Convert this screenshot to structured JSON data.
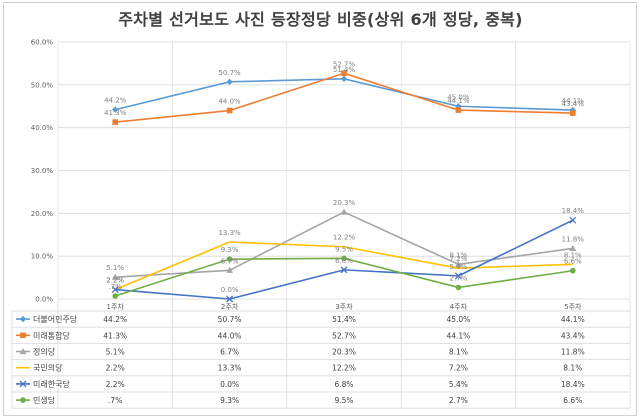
{
  "chart_data": {
    "type": "line",
    "title": "주차별 선거보도 사진 등장정당 비중(상위 6개 정당, 중복)",
    "categories": [
      "1주차",
      "2주차",
      "3주차",
      "4주차",
      "5주차"
    ],
    "ylim": [
      0,
      60
    ],
    "y_ticks": [
      "0.0%",
      "10.0%",
      "20.0%",
      "30.0%",
      "40.0%",
      "50.0%",
      "60.0%"
    ],
    "grid": true,
    "legend": "data-table-bottom",
    "series": [
      {
        "name": "더불어민주당",
        "color": "#5b9bd5",
        "marker": "diamond",
        "values": [
          44.2,
          50.7,
          51.4,
          45.0,
          44.1
        ],
        "labels": [
          "44.2%",
          "50.7%",
          "51.4%",
          "45.0%",
          "44.1%"
        ]
      },
      {
        "name": "미래통합당",
        "color": "#ed7d31",
        "marker": "square",
        "values": [
          41.3,
          44.0,
          52.7,
          44.1,
          43.4
        ],
        "labels": [
          "41.3%",
          "44.0%",
          "52.7%",
          "44.1%",
          "43.4%"
        ]
      },
      {
        "name": "정의당",
        "color": "#a5a5a5",
        "marker": "triangle",
        "values": [
          5.1,
          6.7,
          20.3,
          8.1,
          11.8
        ],
        "labels": [
          "5.1%",
          "6.7%",
          "20.3%",
          "8.1%",
          "11.8%"
        ]
      },
      {
        "name": "국민의당",
        "color": "#ffc000",
        "marker": "none",
        "values": [
          2.2,
          13.3,
          12.2,
          7.2,
          8.1
        ],
        "labels": [
          "2.2%",
          "13.3%",
          "12.2%",
          "7.2%",
          "8.1%"
        ]
      },
      {
        "name": "미래한국당",
        "color": "#4472c4",
        "marker": "x",
        "values": [
          2.2,
          0.0,
          6.8,
          5.4,
          18.4
        ],
        "labels": [
          "2.2%",
          "0.0%",
          "6.8%",
          "5.4%",
          "18.4%"
        ]
      },
      {
        "name": "민생당",
        "color": "#70ad47",
        "marker": "circle",
        "values": [
          0.7,
          9.3,
          9.5,
          2.7,
          6.6
        ],
        "labels": [
          ".7%",
          "9.3%",
          "9.5%",
          "2.7%",
          "6.6%"
        ]
      }
    ]
  }
}
